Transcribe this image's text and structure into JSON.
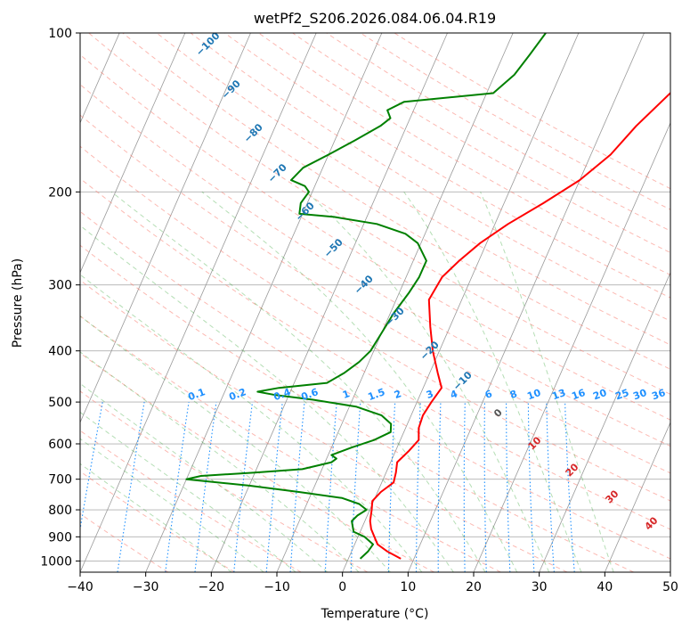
{
  "chart_data": {
    "type": "line",
    "title": "wetPf2_S206.2026.084.06.04.R19",
    "xlabel": "Temperature (°C)",
    "ylabel": "Pressure (hPa)",
    "xlim": [
      -40,
      50
    ],
    "ylim": [
      1050,
      100
    ],
    "x_ticks": [
      -40,
      -30,
      -20,
      -10,
      0,
      10,
      20,
      30,
      40,
      50
    ],
    "x_tick_labels": [
      "−40",
      "−30",
      "−20",
      "−10",
      "0",
      "10",
      "20",
      "30",
      "40",
      "50"
    ],
    "y_ticks": [
      1000,
      900,
      800,
      700,
      600,
      500,
      400,
      300,
      200,
      100
    ],
    "y_tick_labels": [
      "1000",
      "900",
      "800",
      "700",
      "600",
      "500",
      "400",
      "300",
      "200",
      "100"
    ],
    "grid": true,
    "legend": "none",
    "series": [
      {
        "name": "temperature",
        "color": "#ff0000",
        "pressure_hpa": [
          990,
          960,
          930,
          900,
          870,
          840,
          800,
          770,
          740,
          710,
          680,
          650,
          620,
          590,
          560,
          530,
          500,
          470,
          440,
          400,
          360,
          320,
          290,
          270,
          250,
          230,
          210,
          190,
          170,
          150,
          130,
          110,
          100
        ],
        "temp_c": [
          8.0,
          5.5,
          3.5,
          2.5,
          1.5,
          0.8,
          0.3,
          -0.2,
          0.5,
          1.8,
          1.5,
          1.0,
          2.0,
          2.8,
          2.0,
          1.8,
          2.2,
          2.8,
          1.2,
          -1.0,
          -3.0,
          -5.0,
          -4.5,
          -3.0,
          -1.0,
          2.0,
          6.0,
          10.0,
          13.0,
          15.0,
          18.0,
          24.0,
          32.0
        ]
      },
      {
        "name": "dewpoint",
        "color": "#008000",
        "pressure_hpa": [
          990,
          960,
          930,
          900,
          880,
          860,
          840,
          820,
          800,
          780,
          760,
          740,
          720,
          700,
          690,
          680,
          670,
          650,
          640,
          630,
          610,
          590,
          570,
          550,
          530,
          510,
          495,
          485,
          478,
          470,
          460,
          440,
          420,
          400,
          370,
          340,
          310,
          290,
          270,
          250,
          240,
          230,
          223,
          220,
          210,
          200,
          195,
          190,
          180,
          170,
          160,
          150,
          145,
          140,
          135,
          130,
          120,
          110,
          100
        ],
        "temp_c": [
          1.8,
          2.5,
          2.8,
          1.0,
          -1.0,
          -1.5,
          -2.0,
          -1.5,
          -0.5,
          -2.0,
          -5.0,
          -12.0,
          -20.0,
          -30.0,
          -28.0,
          -20.0,
          -13.0,
          -9.0,
          -8.5,
          -9.5,
          -7.0,
          -4.0,
          -2.0,
          -2.5,
          -4.5,
          -9.0,
          -16.0,
          -22.0,
          -25.0,
          -22.0,
          -15.0,
          -13.0,
          -11.5,
          -10.5,
          -10.0,
          -9.5,
          -8.5,
          -8.0,
          -8.0,
          -10.5,
          -13.0,
          -18.0,
          -25.0,
          -30.5,
          -31.0,
          -30.5,
          -31.5,
          -34.0,
          -33.0,
          -30.0,
          -27.0,
          -24.0,
          -23.0,
          -24.0,
          -22.0,
          -9.0,
          -7.0,
          -6.0,
          -5.0
        ]
      }
    ],
    "dry_adiabat_labels": [
      "−100",
      "−90",
      "−80",
      "−70",
      "−60",
      "−50",
      "−40",
      "−30",
      "−20",
      "−10"
    ],
    "mixing_ratio_labels": [
      "0.1",
      "0.2",
      "0.4",
      "0.6",
      "1",
      "1.5",
      "2",
      "3",
      "4",
      "6",
      "8",
      "10",
      "13",
      "16",
      "20",
      "25",
      "30",
      "36"
    ],
    "moist_adiabat_labels": [
      "0",
      "10",
      "20",
      "30",
      "40"
    ]
  },
  "colors": {
    "temperature": "#ff0000",
    "dewpoint": "#008000",
    "dry_adiabat": "#fa8072",
    "moist_adiabat": "#2ca02c",
    "mixing_ratio": "#1e90ff",
    "dry_label": "#1f77b4",
    "moist_label": "#d62728",
    "grid": "#b0b0b0",
    "isotherm": "#999999"
  }
}
